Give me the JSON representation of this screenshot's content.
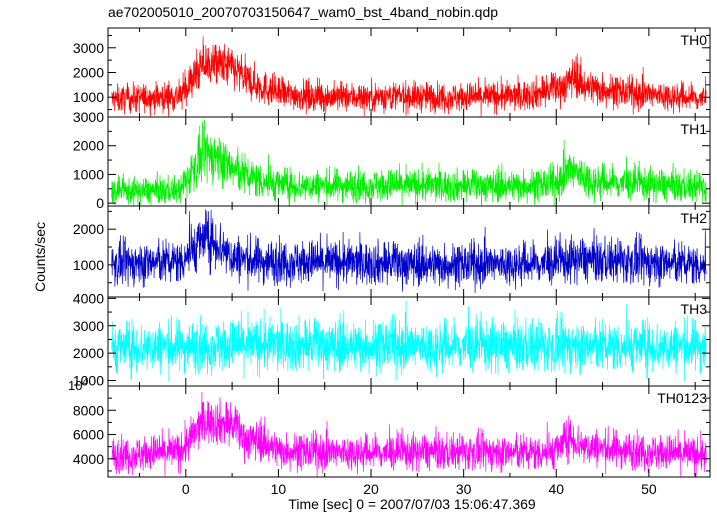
{
  "chart_data": {
    "type": "line",
    "title": "ae702005010_20070703150647_wam0_bst_4band_nobin.qdp",
    "xlabel": "Time [sec] 0 = 2007/07/03 15:06:47.369",
    "ylabel": "Counts/sec",
    "xlim": [
      -8.4,
      56.6
    ],
    "x_ticks": [
      0,
      10,
      20,
      30,
      40,
      50
    ],
    "x_tick_labels": [
      "0",
      "10",
      "20",
      "30",
      "40",
      "50"
    ],
    "panels": [
      {
        "name": "TH0",
        "color": "#ff0000",
        "ylim": [
          200,
          3800
        ],
        "y_ticks": [
          1000,
          2000,
          3000
        ],
        "y_tick_labels": [
          "1000",
          "2000",
          "3000"
        ],
        "baseline": 1000,
        "noise": 300,
        "ceil_cap": 3800,
        "envelope": [
          [
            -8,
            900
          ],
          [
            -0.5,
            1050
          ],
          [
            0.5,
            1600
          ],
          [
            2,
            2350
          ],
          [
            3.5,
            2300
          ],
          [
            5,
            2200
          ],
          [
            6.5,
            1700
          ],
          [
            8,
            1450
          ],
          [
            10,
            1150
          ],
          [
            15,
            1000
          ],
          [
            22,
            1030
          ],
          [
            30,
            1000
          ],
          [
            36,
            1050
          ],
          [
            39,
            1250
          ],
          [
            41,
            1500
          ],
          [
            42,
            1900
          ],
          [
            43,
            1450
          ],
          [
            48,
            1150
          ],
          [
            56,
            950
          ]
        ]
      },
      {
        "name": "TH1",
        "color": "#00ee00",
        "ylim": [
          -100,
          3000
        ],
        "y_ticks": [
          0,
          1000,
          2000,
          3000
        ],
        "y_tick_labels": [
          "0",
          "1000",
          "2000",
          "3000"
        ],
        "baseline": 500,
        "noise": 260,
        "ceil_cap": 2900,
        "envelope": [
          [
            -8,
            400
          ],
          [
            -0.5,
            450
          ],
          [
            0.5,
            1050
          ],
          [
            2,
            1700
          ],
          [
            3.5,
            1600
          ],
          [
            5,
            1200
          ],
          [
            6.5,
            950
          ],
          [
            9,
            700
          ],
          [
            12,
            600
          ],
          [
            20,
            620
          ],
          [
            30,
            600
          ],
          [
            38,
            620
          ],
          [
            40,
            700
          ],
          [
            41.5,
            1150
          ],
          [
            42.5,
            1000
          ],
          [
            44,
            750
          ],
          [
            50,
            650
          ],
          [
            56,
            550
          ]
        ]
      },
      {
        "name": "TH2",
        "color": "#0000cc",
        "ylim": [
          100,
          2650
        ],
        "y_ticks": [
          1000,
          2000
        ],
        "y_tick_labels": [
          "1000",
          "2000"
        ],
        "baseline": 1000,
        "noise": 300,
        "ceil_cap": 2650,
        "envelope": [
          [
            -8,
            1000
          ],
          [
            -0.5,
            1100
          ],
          [
            0.5,
            1400
          ],
          [
            2,
            1750
          ],
          [
            3.5,
            1600
          ],
          [
            5,
            1200
          ],
          [
            8,
            1100
          ],
          [
            20,
            1050
          ],
          [
            30,
            1000
          ],
          [
            40,
            1050
          ],
          [
            42,
            1150
          ],
          [
            56,
            1000
          ]
        ]
      },
      {
        "name": "TH3",
        "color": "#00ffff",
        "ylim": [
          800,
          4050
        ],
        "y_ticks": [
          1000,
          2000,
          3000,
          4000
        ],
        "y_tick_labels": [
          "1000",
          "2000",
          "3000",
          "4000"
        ],
        "baseline": 2300,
        "noise": 480,
        "ceil_cap": 4050,
        "envelope": [
          [
            -8,
            2200
          ],
          [
            10,
            2300
          ],
          [
            30,
            2250
          ],
          [
            56,
            2250
          ]
        ]
      },
      {
        "name": "TH0123",
        "color": "#ff00ff",
        "ylim": [
          2500,
          10000
        ],
        "y_ticks": [
          4000,
          6000,
          8000
        ],
        "y_tick_labels": [
          "4000",
          "6000",
          "8000"
        ],
        "top_label": "10",
        "top_label_exp": "4",
        "baseline": 4500,
        "noise": 750,
        "ceil_cap": 10000,
        "envelope": [
          [
            -8,
            4300
          ],
          [
            -0.5,
            4600
          ],
          [
            0.5,
            5600
          ],
          [
            2,
            7200
          ],
          [
            3.5,
            7000
          ],
          [
            5,
            6800
          ],
          [
            6.5,
            5600
          ],
          [
            8,
            5500
          ],
          [
            10,
            4700
          ],
          [
            15,
            4500
          ],
          [
            25,
            4550
          ],
          [
            38,
            4500
          ],
          [
            40,
            4700
          ],
          [
            41.5,
            5800
          ],
          [
            43,
            5000
          ],
          [
            48,
            4700
          ],
          [
            56,
            4300
          ]
        ]
      }
    ]
  }
}
